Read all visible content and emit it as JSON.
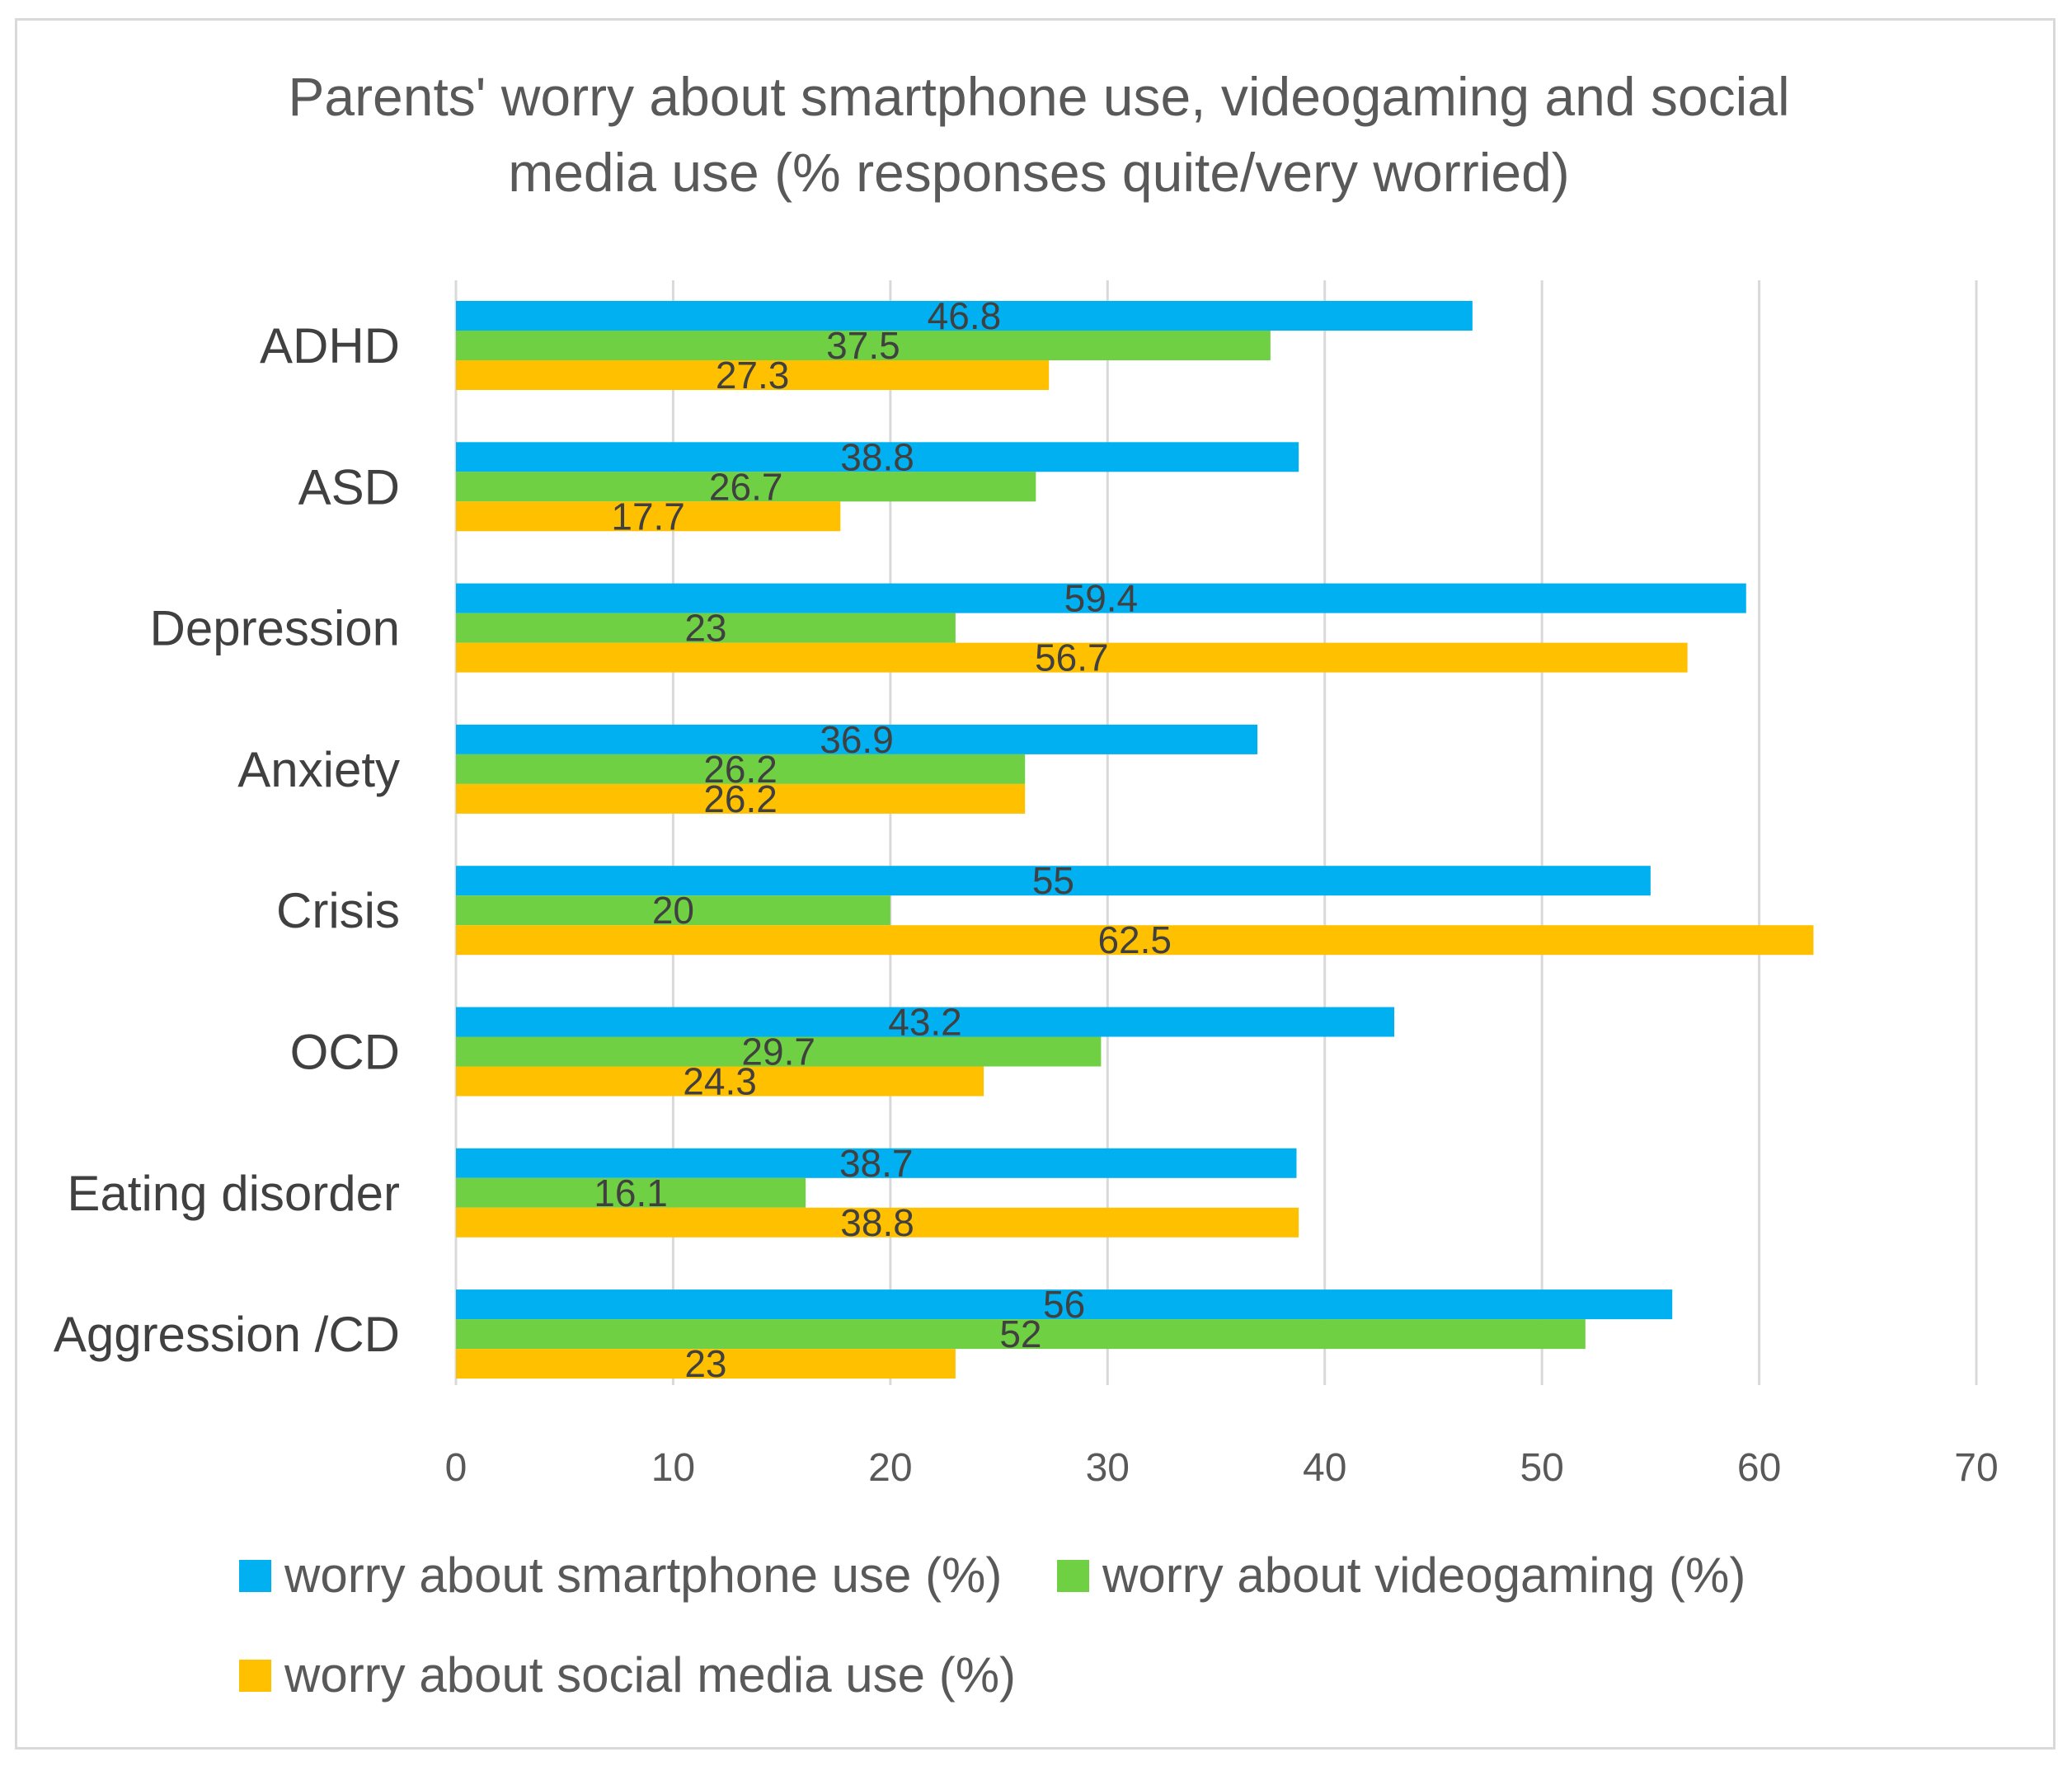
{
  "chart_data": {
    "type": "bar",
    "orientation": "horizontal",
    "title": "Parents' worry about smartphone use, videogaming and social media use (% responses quite/very worried)",
    "title_lines": [
      "Parents' worry about smartphone use, videogaming and social",
      "media use (% responses quite/very worried)"
    ],
    "categories": [
      "ADHD",
      "ASD",
      "Depression",
      "Anxiety",
      "Crisis",
      "OCD",
      "Eating disorder",
      "Aggression /CD"
    ],
    "series": [
      {
        "name": "worry about smartphone use (%)",
        "color": "#00b0f0",
        "values": [
          46.8,
          38.8,
          59.4,
          36.9,
          55,
          43.2,
          38.7,
          56
        ],
        "labels": [
          "46.8",
          "38.8",
          "59.4",
          "36.9",
          "55",
          "43.2",
          "38.7",
          "56"
        ]
      },
      {
        "name": "worry about videogaming (%)",
        "color": "#6fd043",
        "values": [
          37.5,
          26.7,
          23,
          26.2,
          20,
          29.7,
          16.1,
          52
        ],
        "labels": [
          "37.5",
          "26.7",
          "23",
          "26.2",
          "20",
          "29.7",
          "16.1",
          "52"
        ]
      },
      {
        "name": "worry about social media use (%)",
        "color": "#ffc000",
        "values": [
          27.3,
          17.7,
          56.7,
          26.2,
          62.5,
          24.3,
          38.8,
          23
        ],
        "labels": [
          "27.3",
          "17.7",
          "56.7",
          "26.2",
          "62.5",
          "24.3",
          "38.8",
          "23"
        ]
      }
    ],
    "xlim": [
      0,
      70
    ],
    "xticks": [
      0,
      10,
      20,
      30,
      40,
      50,
      60,
      70
    ],
    "xtick_labels": [
      "0",
      "10",
      "20",
      "30",
      "40",
      "50",
      "60",
      "70"
    ],
    "xlabel": "",
    "ylabel": "",
    "grid": "vertical",
    "legend_position": "bottom",
    "gridline_color": "#d9d9d9"
  }
}
